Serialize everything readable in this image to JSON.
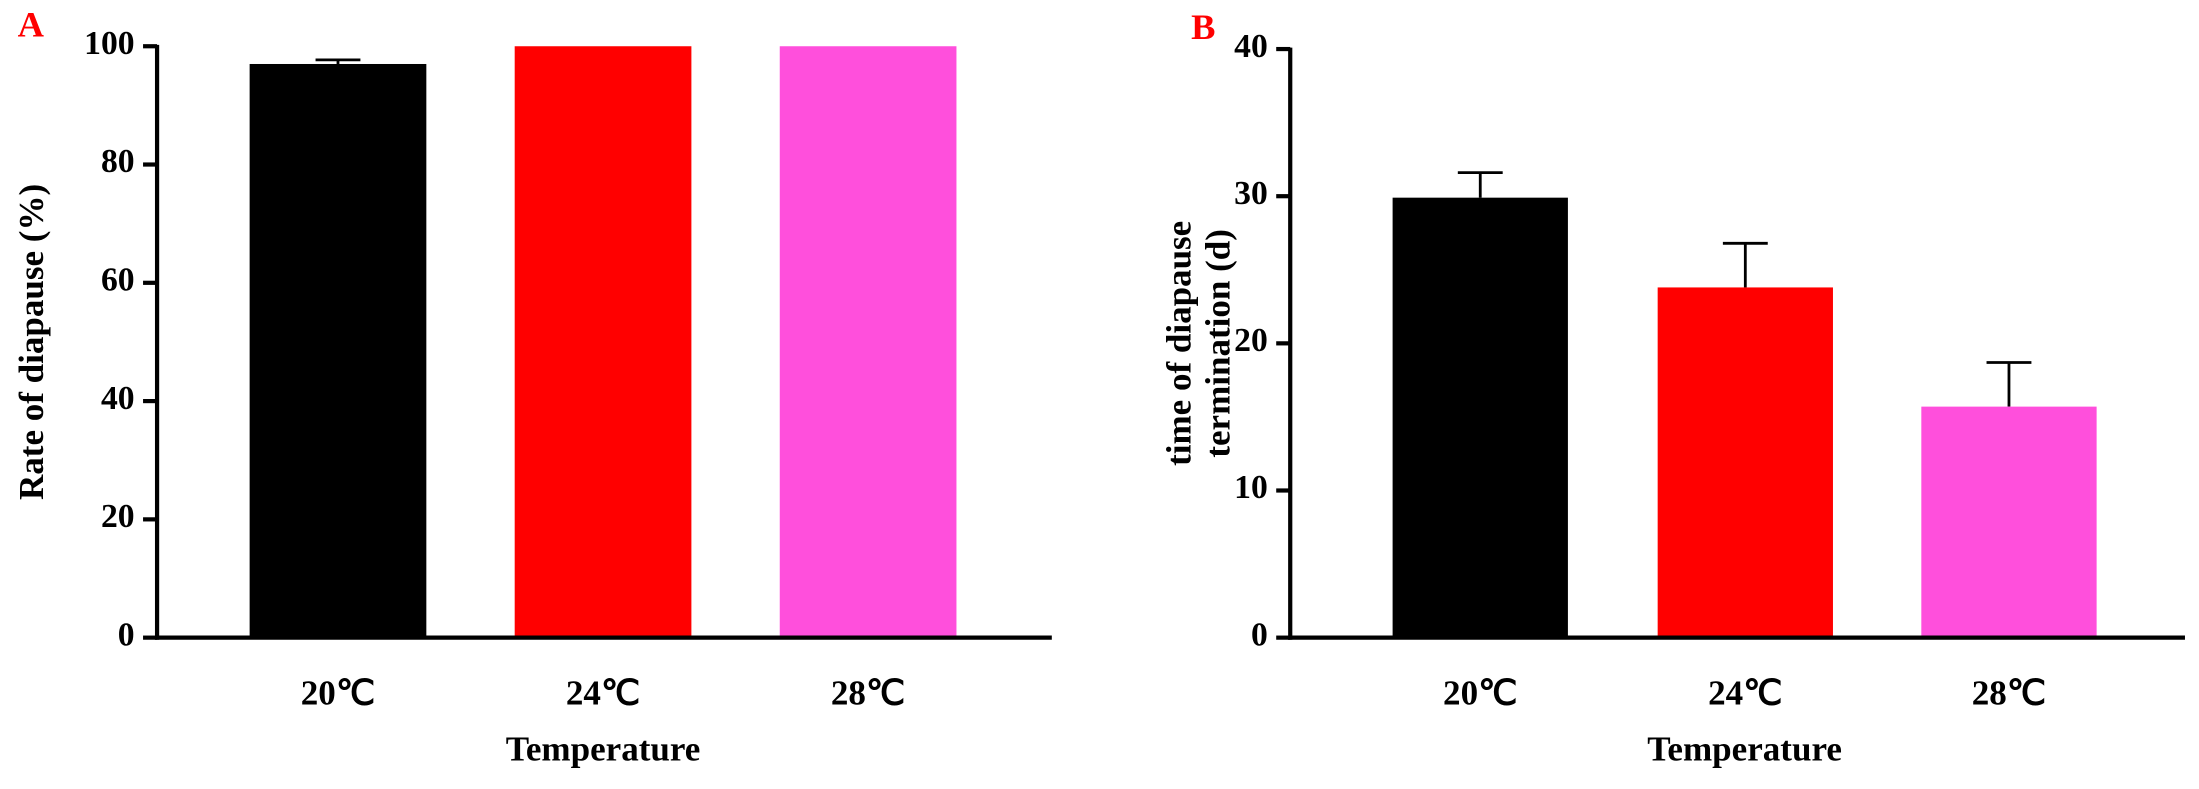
{
  "chart_data": [
    {
      "type": "bar",
      "panel_label": "A",
      "x_label": "Temperature",
      "y_label": [
        "Rate of diapause (%)"
      ],
      "categories": [
        "20℃",
        "24℃",
        "28℃"
      ],
      "values": [
        97,
        100,
        100
      ],
      "errors": [
        0.7,
        null,
        null
      ],
      "colors": [
        "#000000",
        "#ff0000",
        "#ff4fdc"
      ],
      "ylim": [
        0,
        100
      ],
      "yticks": [
        0,
        20,
        40,
        60,
        80,
        100
      ]
    },
    {
      "type": "bar",
      "panel_label": "B",
      "x_label": "Temperature",
      "y_label": [
        "time of diapause",
        "termination (d)"
      ],
      "categories": [
        "20℃",
        "24℃",
        "28℃"
      ],
      "values": [
        29.9,
        23.8,
        15.7
      ],
      "errors": [
        1.7,
        3,
        3
      ],
      "colors": [
        "#000000",
        "#ff0000",
        "#ff4fdc"
      ],
      "ylim": [
        0,
        40
      ],
      "yticks": [
        0,
        10,
        20,
        30,
        40
      ]
    }
  ]
}
